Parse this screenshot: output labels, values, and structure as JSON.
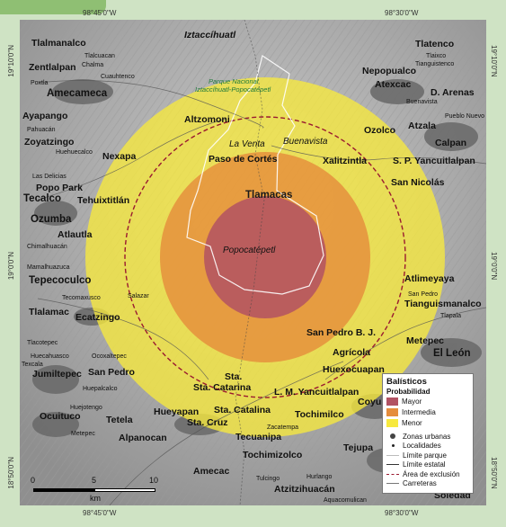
{
  "coordinates": {
    "top_left": "98°45'0\"W",
    "top_right": "98°30'0\"W",
    "bottom_left": "98°45'0\"W",
    "bottom_right": "98°30'0\"W",
    "left_top": "19°10'0\"N",
    "left_mid": "19°0'0\"N",
    "left_bottom": "18°50'0\"N",
    "right_top": "19°10'0\"N",
    "right_mid": "19°0'0\"N",
    "right_bottom": "18°50'0\"N"
  },
  "zones": {
    "mayor_color": "#b25263",
    "intermedia_color": "#e58d3c",
    "menor_color": "#f7e93e"
  },
  "labels": {
    "iztaccihuatl": "Iztaccíhuatl",
    "park": "Parque Nacional Iztaccíhuatl-Popocatépetl",
    "park_l1": "Parque Nacional",
    "park_l2": "Iztaccíhuatl-Popocatépetl",
    "tlatenco": "Tlatenco",
    "tlalmanalco": "Tlalmanalco",
    "zentlalpan": "Zentlalpan",
    "tlalcuacan": "Tlalcuacan",
    "chalma": "Chalma",
    "cuauhtenco": "Cuauhtenco",
    "poxtla": "Poxtla",
    "amecameca": "Amecameca",
    "ayapango": "Ayapango",
    "pahuacan": "Pahuacán",
    "zoyatzingo": "Zoyatzingo",
    "huehuecalco": "Huehuecalco",
    "nexapa": "Nexapa",
    "las_delicias": "Las Delicias",
    "popo_park": "Popo Park",
    "tecalco": "Tecalco",
    "tehuixtitlan": "Tehuixtitlán",
    "ozumba": "Ozumba",
    "atlautla": "Atlautla",
    "chimalhuacan": "Chimalhuacán",
    "mamalhuazuca": "Mamalhuazuca",
    "tepecoculco": "Tepecoculco",
    "tecomaxusco": "Tecomaxusco",
    "salazar": "Salazar",
    "tlalamac": "Tlalamac",
    "ecatzingo": "Ecatzingo",
    "tlacotepec": "Tlacotepec",
    "huecahuasco": "Huecahuasco",
    "ocoxaltepec": "Ocoxaltepec",
    "texcala": "Texcala",
    "jumiltepec": "Jumiltepec",
    "san_pedro": "San Pedro",
    "huepalcalco": "Huepalcalco",
    "huejotengo": "Huejotengo",
    "ocuituco": "Ocuituco",
    "hueyapan": "Hueyapan",
    "tetela": "Tetela",
    "metepec_w": "Metepec",
    "alpanocan": "Alpanocan",
    "sta_cruz": "Sta. Cruz",
    "altzomoni": "Altzomoni",
    "la_venta": "La Venta",
    "buenavista": "Buenavista",
    "paso_cortes": "Paso de Cortés",
    "tlamacas": "Tlamacas",
    "popocatepetl": "Popocatépetl",
    "tlaixco": "Tlaixco",
    "tianguistenco": "Tianguistenco",
    "nepopualco": "Nepopualco",
    "atexcac": "Atexcac",
    "d_arenas": "D. Arenas",
    "buenavista_ne": "Buenavista",
    "ozolco": "Ozolco",
    "atzala": "Atzala",
    "pueblo_nuevo": "Pueblo Nuevo",
    "calpan": "Calpan",
    "xalitzintla": "Xalitzintla",
    "sp_yancuitlalpan": "S. P. Yancuitlalpan",
    "san_nicolas": "San Nicolás",
    "atlimeyaya": "Atlimeyaya",
    "san_pedro_e": "San Pedro",
    "tianguismanalco": "Tianguismanalco",
    "tlapala": "Tlapala",
    "san_pedro_bj": "San Pedro B. J.",
    "agricola": "Agrícola",
    "metepec_e": "Metepec",
    "el_leon": "El León",
    "huexocuapan": "Huexocuapan",
    "sta_catarina": "Sta. Catarina",
    "lm_yancuitlalpan": "L. M. Yancuitlalpan",
    "coyula": "Coyula",
    "sta_catalina": "Sta. Catalina",
    "tochimilco": "Tochimilco",
    "zacatempa": "Zacatempa",
    "tecuanipa": "Tecuanipa",
    "tejupa": "Tejupa",
    "tochimizolco": "Tochimizolco",
    "amecac": "Amecac",
    "tulcingo": "Tulcingo",
    "hurlango": "Hurlango",
    "atzitzihuacan": "Atzitzihuacán",
    "soledad": "Soledad",
    "aquacomulican": "Aquacomulican"
  },
  "legend": {
    "title": "Balísticos",
    "subtitle": "Probabilidad",
    "items": [
      {
        "label": "Mayor",
        "color": "#b25263"
      },
      {
        "label": "Intermedia",
        "color": "#e58d3c"
      },
      {
        "label": "Menor",
        "color": "#f7e93e"
      }
    ],
    "symbols": [
      {
        "label": "Zonas urbanas",
        "icon": "urban-zone-icon"
      },
      {
        "label": "Localidades",
        "icon": "locality-icon"
      },
      {
        "label": "Límite parque",
        "icon": "park-boundary-line-icon"
      },
      {
        "label": "Límite estatal",
        "icon": "state-boundary-line-icon"
      },
      {
        "label": "Área de exclusión",
        "icon": "exclusion-area-line-icon"
      },
      {
        "label": "Carreteras",
        "icon": "road-line-icon"
      }
    ]
  },
  "scale": {
    "ticks": [
      "0",
      "5",
      "10"
    ],
    "unit": "km"
  }
}
